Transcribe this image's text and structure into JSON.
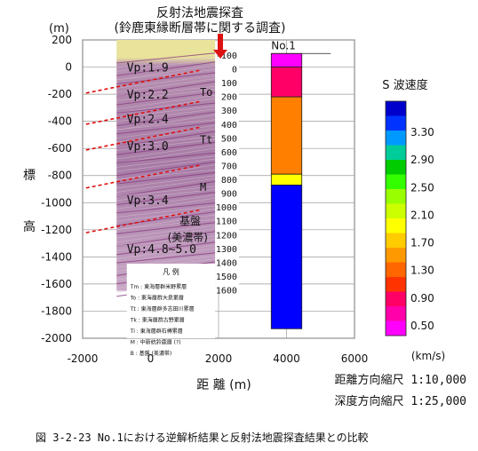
{
  "chart_data": {
    "type": "bar",
    "title_line1": "反射法地震探査",
    "title_line2": "(鈴鹿東縁断層帯に関する調査)",
    "y_unit": "(m)",
    "ylabel_top": "標",
    "ylabel_bottom": "高",
    "xlabel": "距 離 (m)",
    "xlim": [
      -2000,
      6000
    ],
    "ylim": [
      -2000,
      200
    ],
    "x_ticks": [
      "-2000",
      "0",
      "2000",
      "4000",
      "6000"
    ],
    "x_tick_values": [
      -2000,
      0,
      2000,
      4000,
      6000
    ],
    "y_ticks": [
      "200",
      "0",
      "-200",
      "-400",
      "-600",
      "-800",
      "-1000",
      "-1200",
      "-1400",
      "-1600",
      "-1800",
      "-2000"
    ],
    "y_tick_values": [
      200,
      0,
      -200,
      -400,
      -600,
      -800,
      -1000,
      -1200,
      -1400,
      -1600,
      -1800,
      -2000
    ],
    "seismic_section": {
      "x_range": [
        -1000,
        1900
      ],
      "top": 200,
      "bottom": -1650,
      "velocity_labels": [
        "Vp:1.9",
        "Vp:2.2",
        "Vp:2.4",
        "Vp:3.0",
        "Vp:3.4",
        "Vp:4.8~5.0"
      ],
      "velocity_label_depths": [
        0,
        -200,
        -380,
        -580,
        -980,
        -1340
      ],
      "reflector_depths": [
        -100,
        -330,
        -520,
        -800,
        -1130
      ],
      "unit_labels": [
        "To",
        "Tt",
        "M"
      ],
      "unit_label_depths": [
        -180,
        -530,
        -880
      ],
      "basement_label_line1": "基盤",
      "basement_label_line2": "(美濃帯)",
      "depth_scale_values": [
        "-100",
        "0",
        "100",
        "200",
        "300",
        "400",
        "500",
        "600",
        "700",
        "800",
        "900",
        "1000",
        "1100",
        "1200",
        "1300",
        "1400",
        "1500",
        "1600"
      ],
      "legend_title": "凡 例",
      "legend_rows": [
        "Tm : 東海層群米野累層",
        "To : 東海層群大泉累層",
        "Tt : 東海層群多志田川累層",
        "Tk : 東海層群古野累層",
        "Ti : 東海層群石榑累層",
        "M : 中新統鈴鹿層 (?)",
        "B : 基盤 (美濃帯)"
      ]
    },
    "borehole": {
      "label": "No.1",
      "x": 4000,
      "intervals": [
        {
          "top": 100,
          "bottom": 0,
          "color": "#ff00ff"
        },
        {
          "top": 0,
          "bottom": -220,
          "color": "#ff0066"
        },
        {
          "top": -220,
          "bottom": -790,
          "color": "#ff8000"
        },
        {
          "top": -790,
          "bottom": -870,
          "color": "#ffff00"
        },
        {
          "top": -870,
          "bottom": -1930,
          "color": "#0000ff"
        }
      ]
    },
    "colorbar": {
      "title": "S 波速度",
      "unit": "(km/s)",
      "tick_labels": [
        "3.30",
        "2.90",
        "2.50",
        "2.10",
        "1.70",
        "1.30",
        "0.90",
        "0.50"
      ],
      "colors": [
        "#0000cc",
        "#0033ff",
        "#0099ff",
        "#00cc99",
        "#00cc00",
        "#33ff00",
        "#99ff00",
        "#ccff00",
        "#ffff00",
        "#ffcc00",
        "#ff9900",
        "#ff6600",
        "#ff3300",
        "#ff0066",
        "#ff00aa",
        "#ff00ff"
      ]
    },
    "grid": true,
    "scale_line1": "距離方向縮尺 1:10,000",
    "scale_line2": "深度方向縮尺 1:25,000",
    "caption": "図 3-2-23  No.1における逆解析結果と反射法地震探査結果との比較"
  }
}
